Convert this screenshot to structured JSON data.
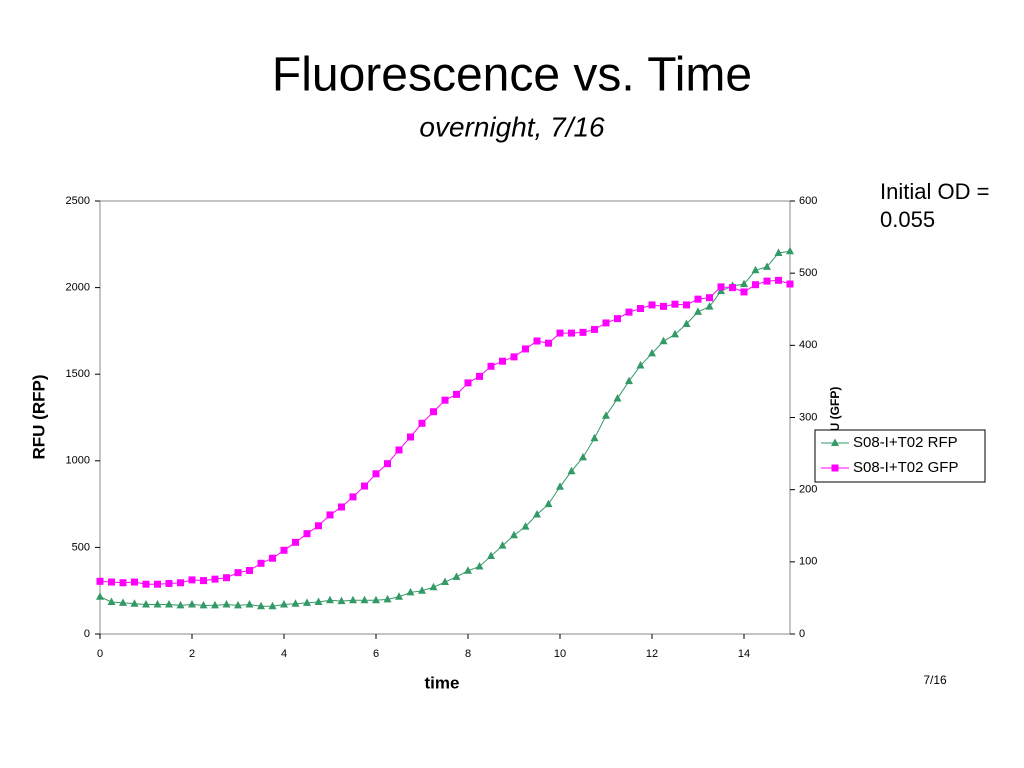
{
  "chart_data": {
    "type": "line",
    "title": "Fluorescence vs. Time",
    "subtitle": "overnight, 7/16",
    "xlabel": "time",
    "ylabel": "RFU (RFP)",
    "y2label": "RFU (GFP)",
    "annotation": "Initial OD = 0.055",
    "footer": "7/16",
    "x": [
      0,
      0.25,
      0.5,
      0.75,
      1,
      1.25,
      1.5,
      1.75,
      2,
      2.25,
      2.5,
      2.75,
      3,
      3.25,
      3.5,
      3.75,
      4,
      4.25,
      4.5,
      4.75,
      5,
      5.25,
      5.5,
      5.75,
      6,
      6.25,
      6.5,
      6.75,
      7,
      7.25,
      7.5,
      7.75,
      8,
      8.25,
      8.5,
      8.75,
      9,
      9.25,
      9.5,
      9.75,
      10,
      10.25,
      10.5,
      10.75,
      11,
      11.25,
      11.5,
      11.75,
      12,
      12.25,
      12.5,
      12.75,
      13,
      13.25,
      13.5,
      13.75,
      14,
      14.25,
      14.5,
      14.75,
      15
    ],
    "xlim": [
      0,
      15
    ],
    "xticks": [
      0,
      2,
      4,
      6,
      8,
      10,
      12,
      14
    ],
    "ylim": [
      0,
      2500
    ],
    "yticks": [
      0,
      500,
      1000,
      1500,
      2000,
      2500
    ],
    "y2lim": [
      0,
      600
    ],
    "y2ticks": [
      0,
      100,
      200,
      300,
      400,
      500,
      600
    ],
    "series": [
      {
        "name": "S08-I+T02 RFP",
        "color": "#339966",
        "marker": "triangle",
        "values": [
          215,
          185,
          180,
          175,
          170,
          170,
          170,
          165,
          170,
          165,
          165,
          170,
          165,
          170,
          160,
          160,
          170,
          175,
          180,
          185,
          195,
          190,
          195,
          195,
          195,
          200,
          215,
          240,
          250,
          270,
          300,
          330,
          365,
          390,
          450,
          510,
          570,
          620,
          690,
          750,
          850,
          940,
          1020,
          1130,
          1260,
          1360,
          1460,
          1550,
          1620,
          1690,
          1730,
          1790,
          1860,
          1890,
          1980,
          2010,
          2020,
          2100,
          2120,
          2200,
          2210
        ]
      },
      {
        "name": "S08-I+T02 GFP",
        "color": "#ff00ff",
        "marker": "square",
        "axis": "y2",
        "values": [
          73,
          72,
          71,
          72,
          69,
          69,
          70,
          71,
          75,
          74,
          76,
          78,
          85,
          88,
          98,
          105,
          116,
          127,
          139,
          150,
          165,
          176,
          190,
          205,
          222,
          236,
          255,
          273,
          292,
          308,
          324,
          332,
          348,
          357,
          371,
          378,
          384,
          395,
          406,
          403,
          417,
          417,
          418,
          422,
          431,
          437,
          446,
          451,
          456,
          454,
          457,
          456,
          464,
          466,
          481,
          480,
          474,
          484,
          489,
          490,
          485
        ]
      }
    ]
  }
}
